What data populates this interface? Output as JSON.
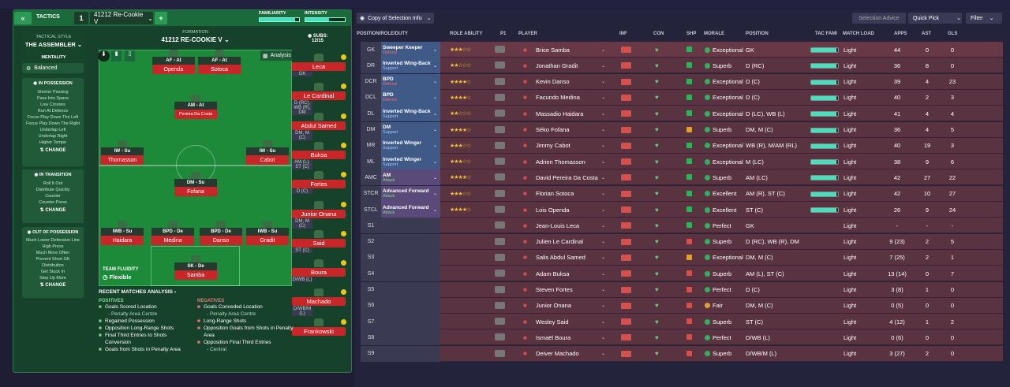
{
  "tactics": {
    "back_icon": "double-chevron-left-icon",
    "label": "TACTICS",
    "slot": "1",
    "name": "41212 Re-Cookie V",
    "familiarity_label": "FAMILIARITY",
    "intensity_label": "INTENSITY"
  },
  "sidebar": {
    "style_label": "TACTICAL STYLE",
    "style": "THE ASSEMBLER",
    "mentality_label": "MENTALITY",
    "mentality": "Balanced",
    "in_possession": {
      "title": "IN POSSESSION",
      "items": [
        "Shorter Passing",
        "Pass Into Space",
        "Low Crosses",
        "Run At Defence",
        "Focus Play Down The Left",
        "Focus Play Down The Right",
        "Underlap Left",
        "Underlap Right",
        "Higher Tempo"
      ]
    },
    "in_transition": {
      "title": "IN TRANSITION",
      "items": [
        "Roll It Out",
        "Distribute Quickly",
        "Counter",
        "Counter-Press"
      ]
    },
    "out_of_possession": {
      "title": "OUT OF POSSESSION",
      "items": [
        "Much Lower Defensive Line",
        "High Press",
        "Much More Often",
        "Prevent Short GK",
        "Distribution",
        "Get Stuck In",
        "Step Up More"
      ]
    },
    "change": "CHANGE"
  },
  "formation": {
    "label": "FORMATION",
    "name": "41212 RE-COOKIE V",
    "subs_label": "SUBS:",
    "subs": "12/15",
    "analysis": "Analysis",
    "fluidity_label": "TEAM FLUIDITY",
    "fluidity": "Flexible"
  },
  "pitch_players": [
    {
      "role": "AF - At",
      "name": "Openda"
    },
    {
      "role": "AF - At",
      "name": "Sotoca"
    },
    {
      "role": "AM - At",
      "name": "Pereira Da Costa"
    },
    {
      "role": "IW - Su",
      "name": "Thomasson"
    },
    {
      "role": "IW - Su",
      "name": "Cabot"
    },
    {
      "role": "DM - Su",
      "name": "Fofana"
    },
    {
      "role": "IWB - Su",
      "name": "Haidara"
    },
    {
      "role": "BPD - De",
      "name": "Medina"
    },
    {
      "role": "BPD - De",
      "name": "Danso"
    },
    {
      "role": "IWB - Su",
      "name": "Gradit"
    },
    {
      "role": "SK - De",
      "name": "Samba"
    }
  ],
  "subs": [
    {
      "name": "Leca",
      "pos": "GK"
    },
    {
      "name": "Le Cardinal",
      "pos": "D (RC), WB (R), DM"
    },
    {
      "name": "Abdul Samed",
      "pos": "DM, M (C)"
    },
    {
      "name": "Buksa",
      "pos": "AM (L), ST (C)"
    },
    {
      "name": "Fortes",
      "pos": "D (C)"
    },
    {
      "name": "Junior Onana",
      "pos": "DM, M (C)"
    },
    {
      "name": "Said",
      "pos": "ST (C)"
    },
    {
      "name": "Boura",
      "pos": "D/WB (L)"
    },
    {
      "name": "Machado",
      "pos": "D/WB/M (L)"
    },
    {
      "name": "Frankowski",
      "pos": ""
    }
  ],
  "analysis": {
    "title": "RECENT MATCHES ANALYSIS",
    "positives_label": "POSITIVES",
    "positives": [
      "Goals Scored Location",
      "- Penalty Area Centre",
      "Regained Possession",
      "Opposition Long-Range Shots",
      "Final Third Entries to Shots Conversion",
      "Goals from Shots in Penalty Area"
    ],
    "negatives_label": "NEGATIVES",
    "negatives": [
      "Goals Conceded Location",
      "- Penalty Area Centre",
      "Long-Range Shots",
      "Opposition Goals from Shots in Penalty Area",
      "Opposition Final Third Entries",
      "- Central"
    ]
  },
  "toolbar": {
    "copy": "Copy of Selection Info",
    "advice": "Selection Advice",
    "quick_pick": "Quick Pick",
    "filter": "Filter"
  },
  "columns": [
    "POSITION/ROLE/DUTY",
    "ROLE ABILITY",
    "P1",
    "PLAYER",
    "INF",
    "CON",
    "SHP",
    "MORALE",
    "POSITION",
    "TAC FAMI",
    "MATCH LOAD",
    "APPS",
    "AST",
    "GLS"
  ],
  "colors": {
    "accent": "#2a9a55",
    "red": "#c9262a",
    "teal": "#45e0bd",
    "star": "#f3c230"
  },
  "rows": [
    {
      "pos": "GK",
      "role": "Sweeper Keeper",
      "duty": "Defend",
      "stars": "★★★☆☆",
      "name": "Brice Samba",
      "morale": "Exceptional",
      "position": "GK",
      "tac": 0.95,
      "load": "Light",
      "apps": "44",
      "ast": "0",
      "gls": "0",
      "ship": "#2fb35a",
      "mc": "#2fb35a"
    },
    {
      "pos": "DR",
      "role": "Inverted Wing-Back",
      "duty": "Support",
      "stars": "★★☆☆☆",
      "name": "Jonathan Gradit",
      "morale": "Superb",
      "position": "D (RC)",
      "tac": 0.95,
      "load": "Light",
      "apps": "36",
      "ast": "8",
      "gls": "0",
      "ship": "#2fb35a",
      "mc": "#2fb35a"
    },
    {
      "pos": "DCR",
      "role": "BPD",
      "duty": "Defend",
      "stars": "★★★★☆",
      "name": "Kevin Danso",
      "morale": "Exceptional",
      "position": "D (C)",
      "tac": 0.95,
      "load": "Light",
      "apps": "39",
      "ast": "4",
      "gls": "23",
      "ship": "#2fb35a",
      "mc": "#2fb35a"
    },
    {
      "pos": "DCL",
      "role": "BPD",
      "duty": "Defend",
      "stars": "★★★★☆",
      "name": "Facundo Medina",
      "morale": "Exceptional",
      "position": "D (C)",
      "tac": 0.95,
      "load": "Light",
      "apps": "40",
      "ast": "2",
      "gls": "3",
      "ship": "#2fb35a",
      "mc": "#2fb35a"
    },
    {
      "pos": "DL",
      "role": "Inverted Wing-Back",
      "duty": "Support",
      "stars": "★★☆☆☆",
      "name": "Massadio Haidara",
      "morale": "Exceptional",
      "position": "D (LC), WB (L)",
      "tac": 0.95,
      "load": "Light",
      "apps": "41",
      "ast": "4",
      "gls": "4",
      "ship": "#2fb35a",
      "mc": "#2fb35a"
    },
    {
      "pos": "DM",
      "role": "DM",
      "duty": "Support",
      "stars": "★★★★☆",
      "name": "Séko Fofana",
      "morale": "Superb",
      "position": "DM, M (C)",
      "tac": 0.95,
      "load": "Light",
      "apps": "36",
      "ast": "4",
      "gls": "5",
      "ship": "#e0a030",
      "mc": "#2fb35a"
    },
    {
      "pos": "MR",
      "role": "Inverted Winger",
      "duty": "Support",
      "stars": "★★★☆☆",
      "name": "Jimmy Cabot",
      "morale": "Exceptional",
      "position": "WB (R), M/AM (RL)",
      "tac": 0.95,
      "load": "Light",
      "apps": "40",
      "ast": "19",
      "gls": "3",
      "ship": "#2fb35a",
      "mc": "#2fb35a"
    },
    {
      "pos": "ML",
      "role": "Inverted Winger",
      "duty": "Support",
      "stars": "★★★☆☆",
      "name": "Adrien Thomasson",
      "morale": "Exceptional",
      "position": "M (LC)",
      "tac": 0.95,
      "load": "Light",
      "apps": "38",
      "ast": "9",
      "gls": "6",
      "ship": "#2fb35a",
      "mc": "#2fb35a"
    },
    {
      "pos": "AMC",
      "role": "AM",
      "duty": "Attack",
      "stars": "★★★★☆",
      "name": "David Pereira Da Costa",
      "morale": "Superb",
      "position": "AM (LC)",
      "tac": 0.95,
      "load": "Light",
      "apps": "42",
      "ast": "27",
      "gls": "22",
      "ship": "#2fb35a",
      "mc": "#2fb35a"
    },
    {
      "pos": "STCR",
      "role": "Advanced Forward",
      "duty": "Attack",
      "stars": "★★★☆☆",
      "name": "Florian Sotoca",
      "morale": "Excellent",
      "position": "AM (R), ST (C)",
      "tac": 0.95,
      "load": "Light",
      "apps": "42",
      "ast": "10",
      "gls": "27",
      "ship": "#2fb35a",
      "mc": "#2fb35a"
    },
    {
      "pos": "STCL",
      "role": "Advanced Forward",
      "duty": "Attack",
      "stars": "★★★★☆",
      "name": "Lois Openda",
      "morale": "Excellent",
      "position": "ST (C)",
      "tac": 0.95,
      "load": "Light",
      "apps": "26",
      "ast": "9",
      "gls": "24",
      "ship": "#2fb35a",
      "mc": "#2fb35a"
    },
    {
      "pos": "S1",
      "role": "",
      "duty": "",
      "stars": "",
      "name": "Jean-Louis Leca",
      "morale": "Perfect",
      "position": "GK",
      "tac": 0,
      "load": "Light",
      "apps": "-",
      "ast": "-",
      "gls": "-",
      "ship": "#2fb35a",
      "mc": "#2fb35a"
    },
    {
      "pos": "S2",
      "role": "",
      "duty": "",
      "stars": "",
      "name": "Julien Le Cardinal",
      "morale": "Superb",
      "position": "D (RC), WB (R), DM",
      "tac": 0,
      "load": "Light",
      "apps": "9 (23)",
      "ast": "2",
      "gls": "5",
      "ship": "#d5504d",
      "mc": "#2fb35a"
    },
    {
      "pos": "S3",
      "role": "",
      "duty": "",
      "stars": "",
      "name": "Salis Abdul Samed",
      "morale": "Exceptional",
      "position": "DM, M (C)",
      "tac": 0,
      "load": "Light",
      "apps": "7 (25)",
      "ast": "2",
      "gls": "1",
      "ship": "#e0a030",
      "mc": "#2fb35a"
    },
    {
      "pos": "S4",
      "role": "",
      "duty": "",
      "stars": "",
      "name": "Adam Buksa",
      "morale": "Superb",
      "position": "AM (L), ST (C)",
      "tac": 0,
      "load": "Light",
      "apps": "13 (14)",
      "ast": "0",
      "gls": "7",
      "ship": "#d5504d",
      "mc": "#2fb35a"
    },
    {
      "pos": "S5",
      "role": "",
      "duty": "",
      "stars": "",
      "name": "Steven Fortes",
      "morale": "Perfect",
      "position": "D (C)",
      "tac": 0,
      "load": "Light",
      "apps": "3 (8)",
      "ast": "1",
      "gls": "0",
      "ship": "#d5504d",
      "mc": "#2fb35a"
    },
    {
      "pos": "S6",
      "role": "",
      "duty": "",
      "stars": "",
      "name": "Junior Onana",
      "morale": "Fair",
      "position": "DM, M (C)",
      "tac": 0,
      "load": "Light",
      "apps": "0 (5)",
      "ast": "0",
      "gls": "0",
      "ship": "#d5504d",
      "mc": "#e0a030"
    },
    {
      "pos": "S7",
      "role": "",
      "duty": "",
      "stars": "",
      "name": "Wesley Said",
      "morale": "Superb",
      "position": "ST (C)",
      "tac": 0,
      "load": "Light",
      "apps": "4 (12)",
      "ast": "1",
      "gls": "2",
      "ship": "#d5504d",
      "mc": "#2fb35a"
    },
    {
      "pos": "S8",
      "role": "",
      "duty": "",
      "stars": "",
      "name": "Ismaël Boura",
      "morale": "Perfect",
      "position": "D/WB (L)",
      "tac": 0,
      "load": "Light",
      "apps": "0 (6)",
      "ast": "0",
      "gls": "0",
      "ship": "#d5504d",
      "mc": "#2fb35a"
    },
    {
      "pos": "S9",
      "role": "",
      "duty": "",
      "stars": "",
      "name": "Deiver Machado",
      "morale": "Superb",
      "position": "D/WB/M (L)",
      "tac": 0,
      "load": "Light",
      "apps": "3 (27)",
      "ast": "2",
      "gls": "0",
      "ship": "#d5504d",
      "mc": "#2fb35a"
    }
  ]
}
